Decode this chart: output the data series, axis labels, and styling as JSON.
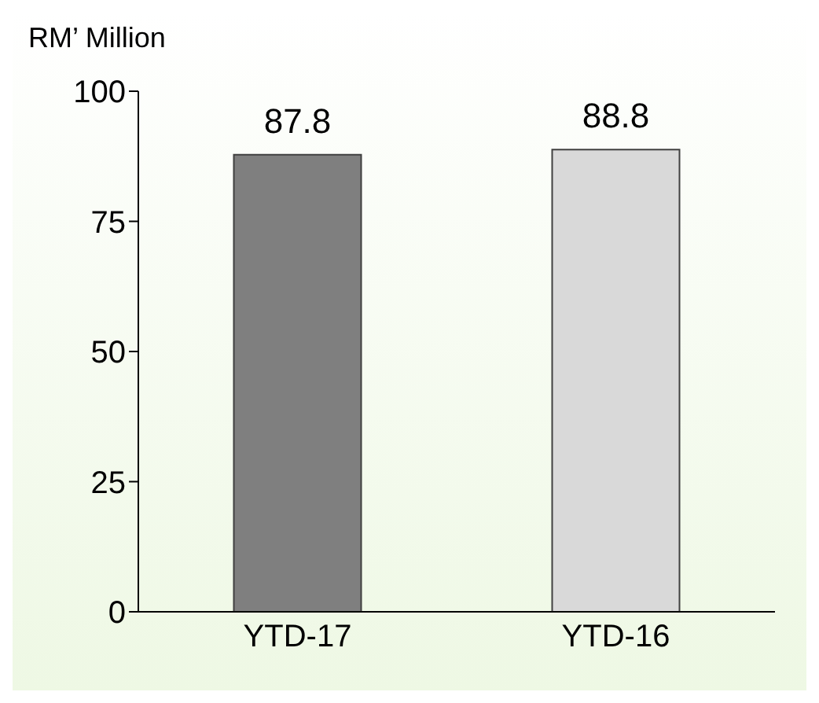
{
  "chart_data": {
    "type": "bar",
    "ylabel": "RM’ Million",
    "categories": [
      "YTD-17",
      "YTD-16"
    ],
    "values": [
      87.8,
      88.8
    ],
    "colors": [
      "#7f7f7f",
      "#d9d9d9"
    ],
    "ylim": [
      0,
      100
    ],
    "yticks": [
      0,
      25,
      50,
      75,
      100
    ],
    "data_labels": true,
    "grid": false
  }
}
